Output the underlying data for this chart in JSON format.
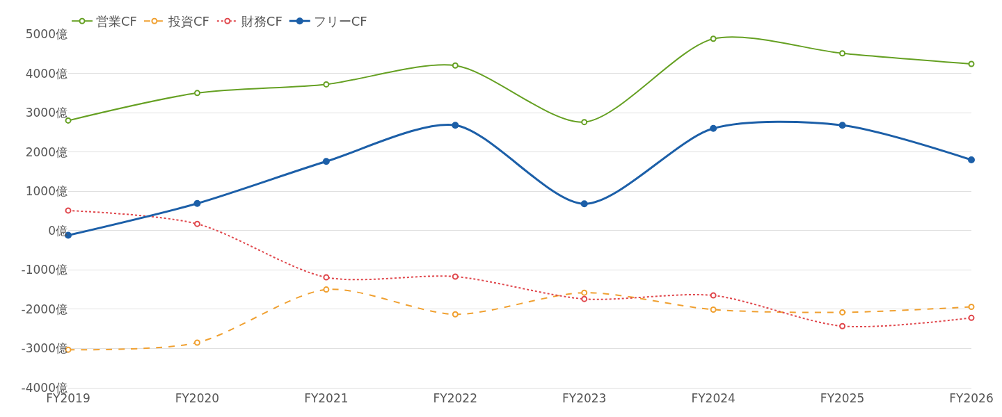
{
  "chart_data": {
    "type": "line",
    "categories": [
      "FY2019",
      "FY2020",
      "FY2021",
      "FY2022",
      "FY2023",
      "FY2024",
      "FY2025",
      "FY2026"
    ],
    "series": [
      {
        "name": "営業CF",
        "color": "#65a022",
        "line_style": "solid",
        "values": [
          2800,
          3500,
          3720,
          4200,
          2760,
          4880,
          4510,
          4240
        ]
      },
      {
        "name": "投資CF",
        "color": "#f0a030",
        "line_style": "dashed",
        "values": [
          -3030,
          -2850,
          -1500,
          -2130,
          -1580,
          -2010,
          -2080,
          -1940
        ]
      },
      {
        "name": "財務CF",
        "color": "#e0474c",
        "line_style": "dotted",
        "values": [
          510,
          170,
          -1190,
          -1170,
          -1740,
          -1650,
          -2430,
          -2220
        ]
      },
      {
        "name": "フリーCF",
        "color": "#1c5fa8",
        "line_style": "solid",
        "values": [
          -120,
          690,
          1760,
          2680,
          680,
          2600,
          2680,
          1800
        ]
      }
    ],
    "ylim": [
      -4000,
      5000
    ],
    "yticks": [
      {
        "value": -4000,
        "label": "-4000億"
      },
      {
        "value": -3000,
        "label": "-3000億"
      },
      {
        "value": -2000,
        "label": "-2000億"
      },
      {
        "value": -1000,
        "label": "-1000億"
      },
      {
        "value": 0,
        "label": "0億"
      },
      {
        "value": 1000,
        "label": "1000億"
      },
      {
        "value": 2000,
        "label": "2000億"
      },
      {
        "value": 3000,
        "label": "3000億"
      },
      {
        "value": 4000,
        "label": "4000億"
      },
      {
        "value": 5000,
        "label": "5000億"
      }
    ],
    "grid": "y",
    "legend": "top left",
    "marker": "circle"
  }
}
